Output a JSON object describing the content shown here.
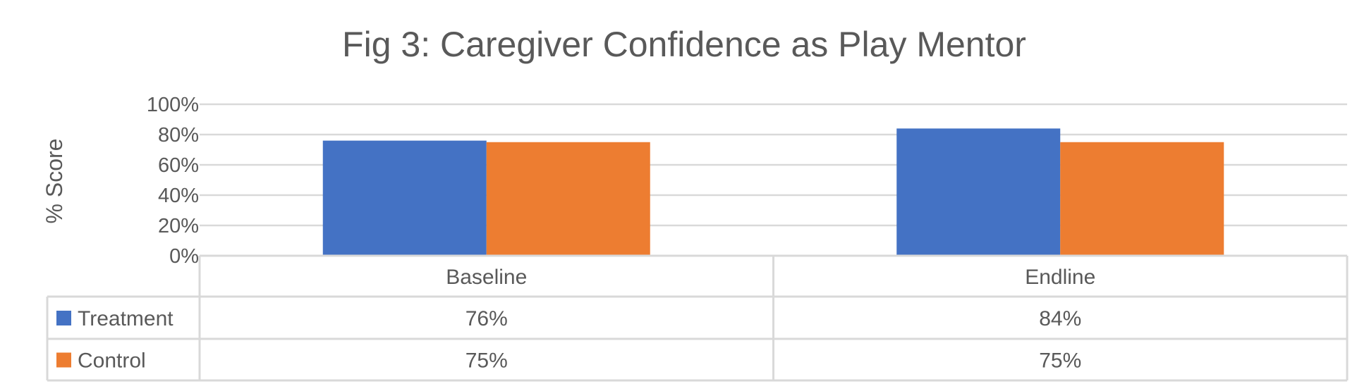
{
  "chart_data": {
    "type": "bar",
    "title": "Fig 3: Caregiver Confidence as Play Mentor",
    "ylabel": "% Score",
    "xlabel": "",
    "categories": [
      "Baseline",
      "Endline"
    ],
    "series": [
      {
        "name": "Treatment",
        "color": "#4472C4",
        "values": [
          76,
          84
        ],
        "labels": [
          "76%",
          "84%"
        ]
      },
      {
        "name": "Control",
        "color": "#ED7D31",
        "values": [
          75,
          75
        ],
        "labels": [
          "75%",
          "75%"
        ]
      }
    ],
    "ylim": [
      0,
      100
    ],
    "yticks": [
      0,
      20,
      40,
      60,
      80,
      100
    ],
    "ytick_labels": [
      "0%",
      "20%",
      "40%",
      "60%",
      "80%",
      "100%"
    ],
    "grid": true,
    "legend": "data-table"
  }
}
